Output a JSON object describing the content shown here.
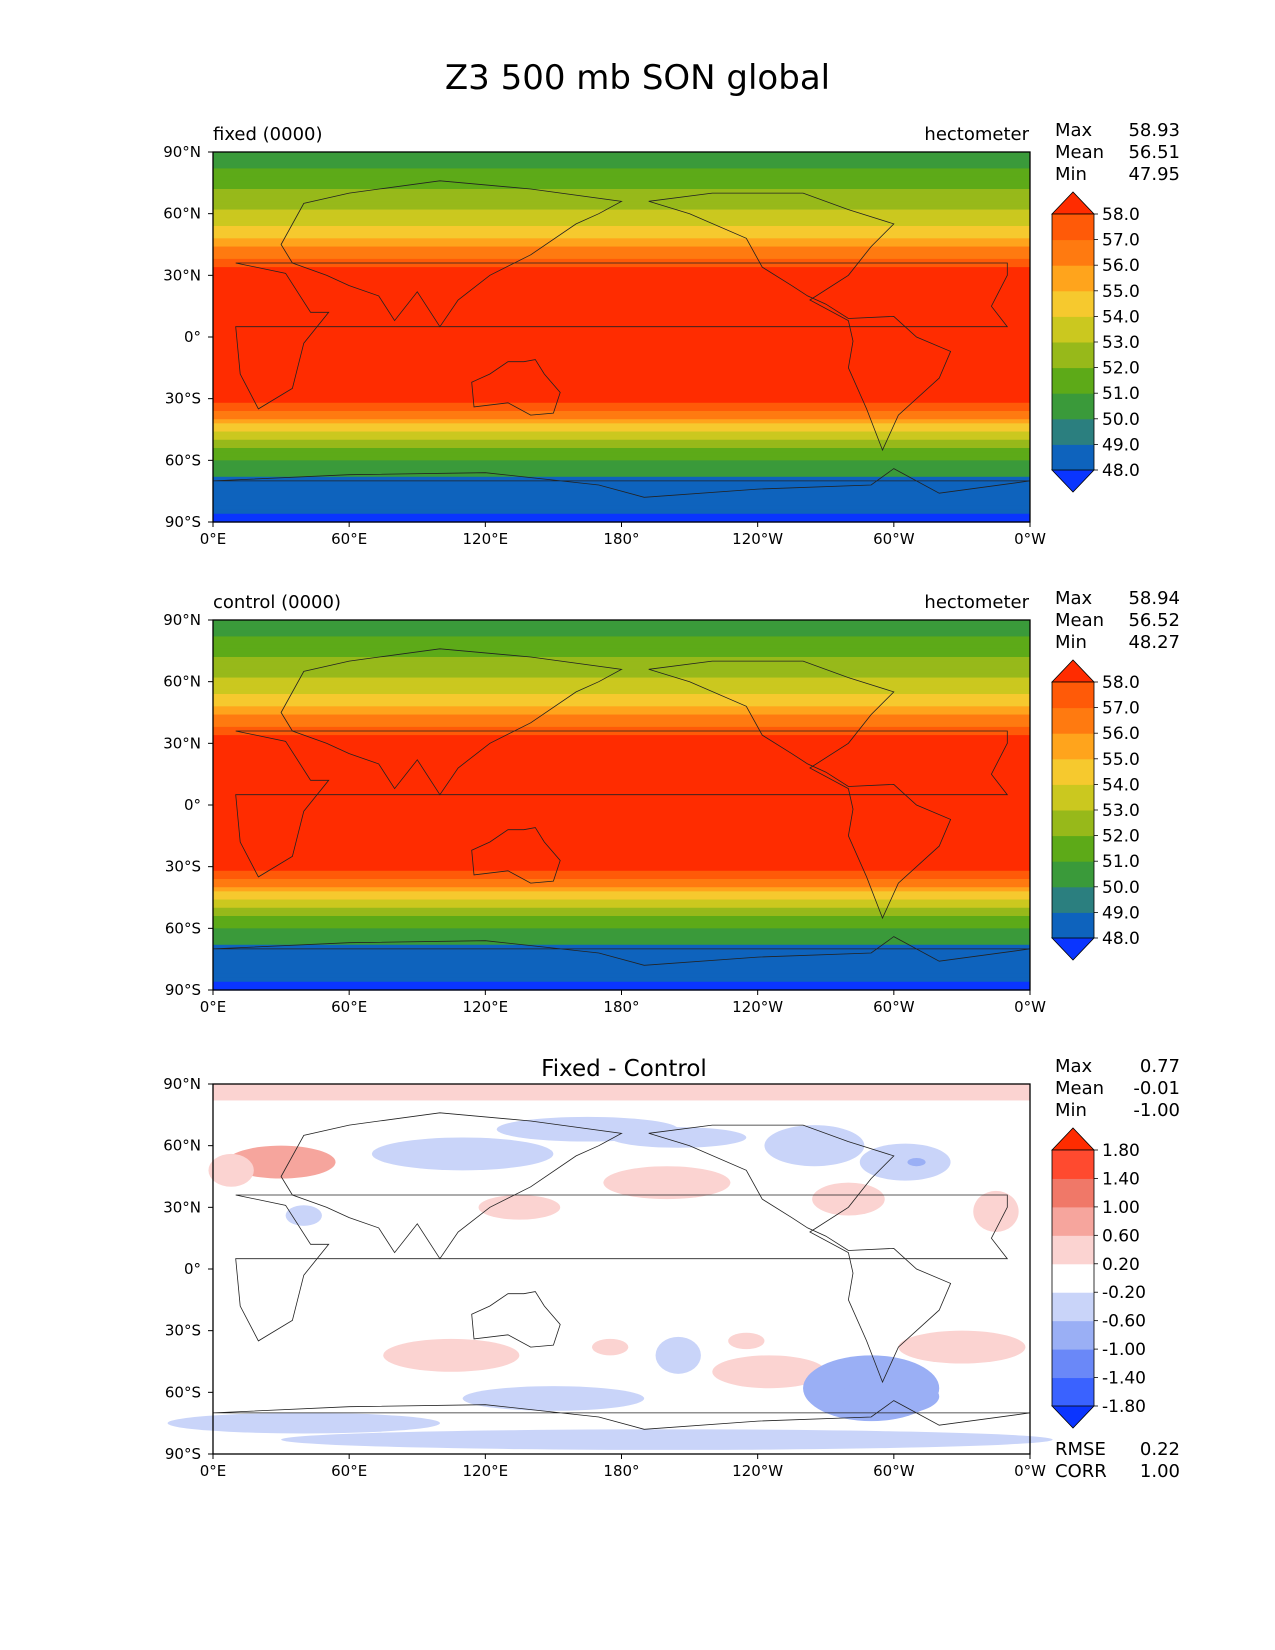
{
  "title": "Z3 500 mb SON global",
  "lon_ticks": [
    "0°E",
    "60°E",
    "120°E",
    "180°",
    "120°W",
    "60°W",
    "0°W"
  ],
  "lat_ticks": [
    "90°N",
    "60°N",
    "30°N",
    "0°",
    "30°S",
    "60°S",
    "90°S"
  ],
  "stat_labels": {
    "max": "Max",
    "mean": "Mean",
    "min": "Min",
    "rmse": "RMSE",
    "corr": "CORR"
  },
  "chart_data": [
    {
      "type": "heatmap",
      "panel": "test",
      "left_label": "fixed (0000)",
      "right_label": "hectometer",
      "stats": {
        "max": "58.93",
        "mean": "56.51",
        "min": "47.95"
      },
      "colorbar": {
        "levels": [
          "48.0",
          "49.0",
          "50.0",
          "51.0",
          "52.0",
          "53.0",
          "54.0",
          "55.0",
          "56.0",
          "57.0",
          "58.0"
        ],
        "colors": [
          "#0a35ff",
          "#0e63bd",
          "#2b7f7f",
          "#3a9a3a",
          "#5daa18",
          "#97b91a",
          "#cbc81f",
          "#f6c92e",
          "#ffa41c",
          "#ff7a10",
          "#ff5a08",
          "#ff2c00"
        ]
      },
      "xlim": [
        0,
        360
      ],
      "ylim": [
        -90,
        90
      ]
    },
    {
      "type": "heatmap",
      "panel": "reference",
      "left_label": "control (0000)",
      "right_label": "hectometer",
      "stats": {
        "max": "58.94",
        "mean": "56.52",
        "min": "48.27"
      },
      "colorbar": {
        "levels": [
          "48.0",
          "49.0",
          "50.0",
          "51.0",
          "52.0",
          "53.0",
          "54.0",
          "55.0",
          "56.0",
          "57.0",
          "58.0"
        ],
        "colors": [
          "#0a35ff",
          "#0e63bd",
          "#2b7f7f",
          "#3a9a3a",
          "#5daa18",
          "#97b91a",
          "#cbc81f",
          "#f6c92e",
          "#ffa41c",
          "#ff7a10",
          "#ff5a08",
          "#ff2c00"
        ]
      },
      "xlim": [
        0,
        360
      ],
      "ylim": [
        -90,
        90
      ]
    },
    {
      "type": "heatmap",
      "panel": "difference",
      "title": "Fixed - Control",
      "stats": {
        "max": "0.77",
        "mean": "-0.01",
        "min": "-1.00"
      },
      "metrics": {
        "rmse": "0.22",
        "corr": "1.00"
      },
      "colorbar": {
        "levels": [
          "-1.80",
          "-1.40",
          "-1.00",
          "-0.60",
          "-0.20",
          "0.20",
          "0.60",
          "1.00",
          "1.40",
          "1.80"
        ],
        "colors": [
          "#0b35ff",
          "#3a62ff",
          "#6a88f8",
          "#9aaff5",
          "#c9d4f9",
          "#ffffff",
          "#fbd3d1",
          "#f6a59d",
          "#f07868",
          "#ff4a2f",
          "#ff2c00"
        ]
      },
      "xlim": [
        0,
        360
      ],
      "ylim": [
        -90,
        90
      ]
    }
  ]
}
